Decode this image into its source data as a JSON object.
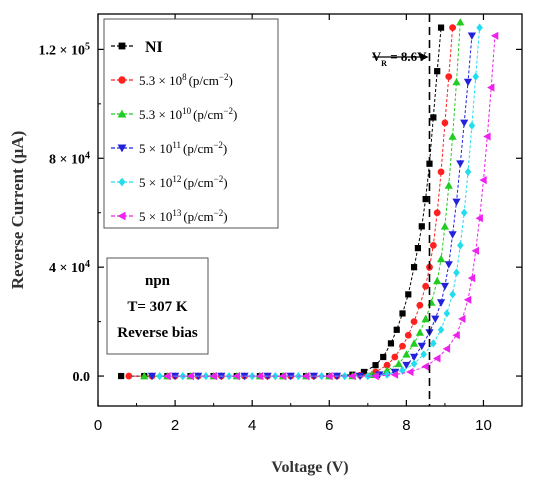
{
  "chart_data": {
    "type": "line",
    "xlabel": "Voltage (V)",
    "ylabel": "Reverse Current (μA)",
    "xlim": [
      0,
      11
    ],
    "ylim": [
      -11000,
      133000
    ],
    "x_ticks": [
      0,
      2,
      4,
      6,
      8,
      10
    ],
    "y_ticks": [
      {
        "value": 0,
        "base": "0.0",
        "exp": ""
      },
      {
        "value": 40000,
        "base": "4 × 10",
        "exp": "4"
      },
      {
        "value": 80000,
        "base": "8 × 10",
        "exp": "4"
      },
      {
        "value": 120000,
        "base": "1.2 × 10",
        "exp": "5"
      }
    ],
    "grid": false,
    "legend_position": "top-left",
    "reference_line": {
      "x": 8.6,
      "label_main": "V",
      "label_sub": "R",
      "label_rest": " = 8.6V"
    },
    "annotation": {
      "lines": [
        "npn",
        "T= 307 K",
        "Reverse bias"
      ]
    },
    "series": [
      {
        "name": "NI",
        "label": {
          "main": "NI",
          "exp": "",
          "unit": ""
        },
        "color": "#000000",
        "marker": "square",
        "x": [
          0.6,
          1.2,
          1.8,
          2.4,
          3.0,
          3.6,
          4.2,
          4.8,
          5.4,
          6.0,
          6.6,
          6.9,
          7.2,
          7.4,
          7.6,
          7.75,
          7.9,
          8.05,
          8.2,
          8.3,
          8.4,
          8.5,
          8.6,
          8.7,
          8.8,
          8.9
        ],
        "y": [
          0,
          0,
          0,
          0,
          0,
          0,
          0,
          0,
          0,
          0,
          500,
          1500,
          4000,
          7000,
          12000,
          17000,
          23000,
          30000,
          40000,
          47000,
          55000,
          65000,
          78000,
          95000,
          112000,
          128000
        ]
      },
      {
        "name": "5.3 × 10^8 (p/cm^-2)",
        "label": {
          "main": "5.3 × 10",
          "exp": "8",
          "unit": "(p/cm^-2)"
        },
        "color": "#ff2020",
        "marker": "circle",
        "x": [
          0.8,
          1.4,
          2.0,
          2.6,
          3.2,
          3.8,
          4.4,
          5.0,
          5.6,
          6.2,
          6.8,
          7.2,
          7.5,
          7.7,
          7.9,
          8.05,
          8.2,
          8.35,
          8.5,
          8.6,
          8.7,
          8.8,
          8.9,
          9.0,
          9.1,
          9.2
        ],
        "y": [
          0,
          0,
          0,
          0,
          0,
          0,
          0,
          0,
          0,
          0,
          300,
          1500,
          4000,
          7000,
          11000,
          15000,
          20000,
          26000,
          33000,
          40000,
          48000,
          60000,
          75000,
          93000,
          110000,
          128000
        ]
      },
      {
        "name": "5.3 × 10^10 (p/cm^-2)",
        "label": {
          "main": "5.3 × 10",
          "exp": "10",
          "unit": "(p/cm^-2)"
        },
        "color": "#22cc22",
        "marker": "triangle-up",
        "x": [
          1.2,
          1.8,
          2.4,
          3.0,
          3.6,
          4.2,
          4.8,
          5.4,
          6.0,
          6.6,
          7.1,
          7.5,
          7.8,
          8.0,
          8.2,
          8.35,
          8.5,
          8.65,
          8.8,
          8.9,
          9.0,
          9.1,
          9.2,
          9.3,
          9.4
        ],
        "y": [
          0,
          0,
          0,
          0,
          0,
          0,
          0,
          0,
          0,
          0,
          500,
          2000,
          4500,
          8000,
          12000,
          16000,
          21000,
          27000,
          35000,
          43000,
          55000,
          70000,
          88000,
          108000,
          130000
        ]
      },
      {
        "name": "5 × 10^11 (p/cm^-2)",
        "label": {
          "main": "5 × 10",
          "exp": "11",
          "unit": "(p/cm^-2)"
        },
        "color": "#2222dd",
        "marker": "triangle-down",
        "x": [
          1.4,
          2.0,
          2.6,
          3.2,
          3.8,
          4.4,
          5.0,
          5.6,
          6.2,
          6.8,
          7.3,
          7.7,
          8.0,
          8.2,
          8.4,
          8.6,
          8.75,
          8.9,
          9.0,
          9.1,
          9.2,
          9.3,
          9.4,
          9.5,
          9.6,
          9.7
        ],
        "y": [
          0,
          0,
          0,
          0,
          0,
          0,
          0,
          0,
          0,
          0,
          500,
          1500,
          4000,
          7000,
          11000,
          16000,
          21000,
          27000,
          33000,
          41000,
          52000,
          64000,
          78000,
          93000,
          108000,
          125000
        ]
      },
      {
        "name": "5 × 10^12 (p/cm^-2)",
        "label": {
          "main": "5 × 10",
          "exp": "12",
          "unit": "(p/cm^-2)"
        },
        "color": "#22ddee",
        "marker": "diamond",
        "x": [
          1.6,
          2.2,
          2.8,
          3.4,
          4.0,
          4.6,
          5.2,
          5.8,
          6.4,
          7.0,
          7.5,
          7.9,
          8.2,
          8.45,
          8.7,
          8.9,
          9.05,
          9.2,
          9.3,
          9.4,
          9.5,
          9.6,
          9.7,
          9.8,
          9.9
        ],
        "y": [
          0,
          0,
          0,
          0,
          0,
          0,
          0,
          0,
          0,
          0,
          500,
          2000,
          4500,
          8000,
          12000,
          17000,
          23000,
          30000,
          38000,
          48000,
          60000,
          75000,
          92000,
          110000,
          128000
        ]
      },
      {
        "name": "5 × 10^13 (p/cm^-2)",
        "label": {
          "main": "5 × 10",
          "exp": "13",
          "unit": "(p/cm^-2)"
        },
        "color": "#ee22ee",
        "marker": "triangle-left",
        "x": [
          1.8,
          2.4,
          3.0,
          3.6,
          4.2,
          4.8,
          5.4,
          6.0,
          6.6,
          7.2,
          7.7,
          8.1,
          8.5,
          8.8,
          9.05,
          9.3,
          9.45,
          9.6,
          9.7,
          9.8,
          9.9,
          10.0,
          10.1,
          10.2,
          10.3
        ],
        "y": [
          0,
          0,
          0,
          0,
          0,
          0,
          0,
          0,
          0,
          0,
          500,
          1500,
          3500,
          6500,
          10000,
          15000,
          21000,
          28000,
          36000,
          46000,
          58000,
          72000,
          88000,
          106000,
          125000
        ]
      }
    ]
  }
}
